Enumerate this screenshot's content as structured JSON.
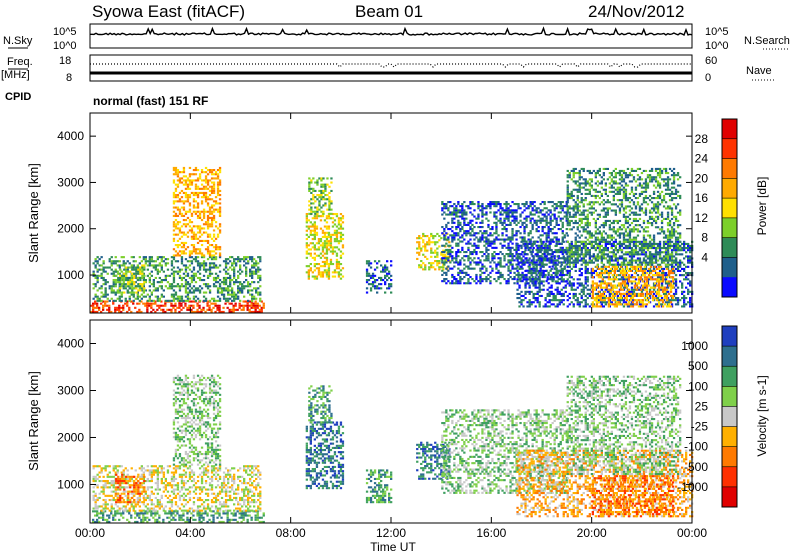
{
  "header": {
    "station": "Syowa East (fitACF)",
    "beam": "Beam 01",
    "date": "24/Nov/2012"
  },
  "status_panel": {
    "nsky_label": "N.Sky",
    "nsky_top_tick": "10^5",
    "nsky_bottom_tick": "10^0",
    "nsearch_label": "N.Search",
    "nsearch_top_tick": "10^5",
    "nsearch_bottom_tick": "10^0",
    "freq_label": "Freq.",
    "freq_unit": "[MHz]",
    "freq_ticks": [
      "18",
      "8"
    ],
    "nave_label": "Nave",
    "nave_ticks": [
      "60",
      "0"
    ],
    "cpid_label": "CPID",
    "cpid_value": "normal (fast) 151 RF"
  },
  "chart_data": [
    {
      "type": "heatmap",
      "name": "power",
      "ylabel": "Slant Range [km]",
      "xlabel": "",
      "xlim": [
        "00:00",
        "24:00"
      ],
      "ylim": [
        180,
        4500
      ],
      "y_ticks": [
        1000,
        2000,
        3000,
        4000
      ],
      "colorbar": {
        "label": "Power [dB]",
        "ticks": [
          "28",
          "24",
          "20",
          "16",
          "12",
          "8",
          "4"
        ],
        "colors": [
          "#e00000",
          "#ff3300",
          "#ff7a00",
          "#ffaa00",
          "#ffe000",
          "#7ccf2a",
          "#2e8b57",
          "#1f5f8b",
          "#0a0aff"
        ]
      },
      "regions": [
        {
          "t": [
            0.0,
            6.9
          ],
          "r": [
            180,
            420
          ],
          "level": 7
        },
        {
          "t": [
            0.1,
            6.8
          ],
          "r": [
            420,
            1400
          ],
          "level": 2
        },
        {
          "t": [
            3.3,
            5.2
          ],
          "r": [
            1400,
            3300
          ],
          "level": 5
        },
        {
          "t": [
            1.0,
            2.2
          ],
          "r": [
            600,
            1200
          ],
          "level": 3
        },
        {
          "t": [
            8.6,
            10.1
          ],
          "r": [
            900,
            2300
          ],
          "level": 4
        },
        {
          "t": [
            8.7,
            9.6
          ],
          "r": [
            2300,
            3100
          ],
          "level": 3
        },
        {
          "t": [
            11.0,
            12.0
          ],
          "r": [
            600,
            1300
          ],
          "level": 1
        },
        {
          "t": [
            13.0,
            14.3
          ],
          "r": [
            1100,
            1900
          ],
          "level": 4
        },
        {
          "t": [
            14.0,
            19.0
          ],
          "r": [
            800,
            2600
          ],
          "level": 1
        },
        {
          "t": [
            17.0,
            24.0
          ],
          "r": [
            300,
            1700
          ],
          "level": 1
        },
        {
          "t": [
            20.0,
            23.2
          ],
          "r": [
            300,
            1200
          ],
          "level": 5
        },
        {
          "t": [
            19.0,
            23.5
          ],
          "r": [
            1200,
            3300
          ],
          "level": 2
        }
      ]
    },
    {
      "type": "heatmap",
      "name": "velocity",
      "ylabel": "Slant Range [km]",
      "xlabel": "Time UT",
      "xlim": [
        "00:00",
        "24:00"
      ],
      "x_ticks": [
        "00:00",
        "04:00",
        "08:00",
        "12:00",
        "16:00",
        "20:00",
        "00:00"
      ],
      "ylim": [
        180,
        4500
      ],
      "y_ticks": [
        1000,
        2000,
        3000,
        4000
      ],
      "colorbar": {
        "label": "Velocity [m s-1]",
        "ticks": [
          "1000",
          "500",
          "100",
          "25",
          "-25",
          "-100",
          "-500",
          "-1000"
        ],
        "colors": [
          "#1f3fbf",
          "#2e6f8e",
          "#3fa060",
          "#7fd04a",
          "#c8c8c8",
          "#ffb000",
          "#ff7a00",
          "#ff3000",
          "#e00000"
        ]
      },
      "regions": [
        {
          "t": [
            0.0,
            6.9
          ],
          "r": [
            180,
            420
          ],
          "level": 6
        },
        {
          "t": [
            0.1,
            6.8
          ],
          "r": [
            420,
            1400
          ],
          "level": 4
        },
        {
          "t": [
            3.3,
            5.2
          ],
          "r": [
            1400,
            3300
          ],
          "level": 5
        },
        {
          "t": [
            1.0,
            2.2
          ],
          "r": [
            600,
            1200
          ],
          "level": 2
        },
        {
          "t": [
            8.6,
            10.1
          ],
          "r": [
            900,
            2300
          ],
          "level": 7
        },
        {
          "t": [
            8.7,
            9.6
          ],
          "r": [
            2300,
            3100
          ],
          "level": 6
        },
        {
          "t": [
            11.0,
            12.0
          ],
          "r": [
            600,
            1300
          ],
          "level": 6
        },
        {
          "t": [
            13.0,
            14.3
          ],
          "r": [
            1100,
            1900
          ],
          "level": 7
        },
        {
          "t": [
            14.0,
            19.0
          ],
          "r": [
            800,
            2600
          ],
          "level": 5
        },
        {
          "t": [
            17.0,
            24.0
          ],
          "r": [
            300,
            1700
          ],
          "level": 3
        },
        {
          "t": [
            20.0,
            23.2
          ],
          "r": [
            300,
            1200
          ],
          "level": 2
        },
        {
          "t": [
            19.0,
            23.5
          ],
          "r": [
            1200,
            3300
          ],
          "level": 5
        }
      ]
    }
  ]
}
